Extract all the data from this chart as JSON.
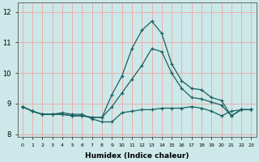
{
  "xlabel": "Humidex (Indice chaleur)",
  "x_hours": [
    0,
    1,
    2,
    3,
    4,
    5,
    6,
    7,
    8,
    9,
    10,
    11,
    12,
    13,
    14,
    15,
    16,
    17,
    18,
    19,
    20,
    21,
    22,
    23
  ],
  "line_max": [
    8.9,
    8.75,
    8.65,
    8.65,
    8.65,
    8.6,
    8.6,
    8.55,
    8.55,
    9.3,
    9.9,
    10.8,
    11.4,
    11.7,
    11.3,
    10.3,
    9.75,
    9.5,
    9.45,
    9.2,
    9.1,
    8.6,
    8.8,
    8.8
  ],
  "line_mean": [
    8.9,
    8.75,
    8.65,
    8.65,
    8.65,
    8.6,
    8.6,
    8.55,
    8.55,
    8.9,
    9.35,
    9.8,
    10.25,
    10.8,
    10.7,
    10.0,
    9.5,
    9.2,
    9.15,
    9.05,
    8.95,
    8.6,
    8.8,
    8.8
  ],
  "line_min": [
    8.9,
    8.75,
    8.65,
    8.65,
    8.7,
    8.65,
    8.65,
    8.5,
    8.4,
    8.4,
    8.7,
    8.75,
    8.8,
    8.8,
    8.85,
    8.85,
    8.85,
    8.9,
    8.85,
    8.75,
    8.6,
    8.75,
    8.8,
    8.8
  ],
  "bg_color": "#cde8e8",
  "grid_color": "#f0a0a0",
  "line_color": "#1a6060",
  "ylim": [
    7.9,
    12.3
  ],
  "yticks": [
    8,
    9,
    10,
    11,
    12
  ],
  "xticks": [
    0,
    1,
    2,
    3,
    4,
    5,
    6,
    7,
    8,
    9,
    10,
    11,
    12,
    13,
    14,
    15,
    16,
    17,
    18,
    19,
    20,
    21,
    22,
    23
  ]
}
